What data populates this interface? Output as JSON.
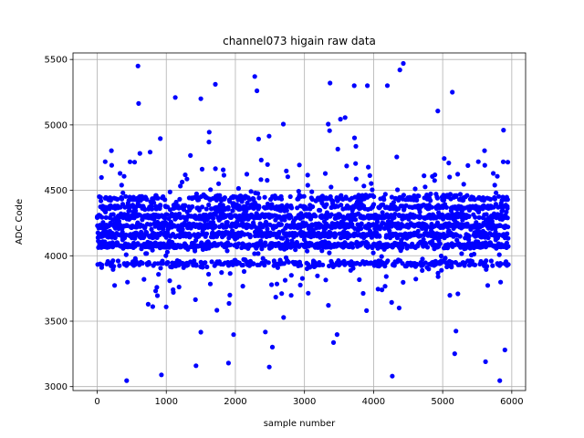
{
  "chart_data": {
    "type": "scatter",
    "title": "channel073 higain raw data",
    "xlabel": "sample number",
    "ylabel": "ADC Code",
    "xlim": [
      -350,
      6200
    ],
    "ylim": [
      2970,
      5550
    ],
    "xticks": [
      0,
      1000,
      2000,
      3000,
      4000,
      5000,
      6000
    ],
    "yticks": [
      3000,
      3500,
      4000,
      4500,
      5000,
      5500
    ],
    "grid": true,
    "marker_color": "#0000ff",
    "n_samples": 5952,
    "levels": [
      3940,
      4080,
      4160,
      4230,
      4300,
      4370,
      4440
    ],
    "notable_points": [
      {
        "x": 590,
        "y": 5450
      },
      {
        "x": 4380,
        "y": 5420
      },
      {
        "x": 4430,
        "y": 5470
      },
      {
        "x": 2280,
        "y": 5370
      },
      {
        "x": 3370,
        "y": 5320
      },
      {
        "x": 1710,
        "y": 5310
      },
      {
        "x": 3720,
        "y": 5300
      },
      {
        "x": 3910,
        "y": 5300
      },
      {
        "x": 5140,
        "y": 5250
      },
      {
        "x": 1130,
        "y": 5210
      },
      {
        "x": 1500,
        "y": 5200
      },
      {
        "x": 5880,
        "y": 4960
      },
      {
        "x": 930,
        "y": 3090
      },
      {
        "x": 4270,
        "y": 3080
      },
      {
        "x": 2490,
        "y": 3150
      },
      {
        "x": 1430,
        "y": 3160
      },
      {
        "x": 5620,
        "y": 3190
      },
      {
        "x": 1900,
        "y": 3180
      },
      {
        "x": 5900,
        "y": 3280
      }
    ]
  }
}
